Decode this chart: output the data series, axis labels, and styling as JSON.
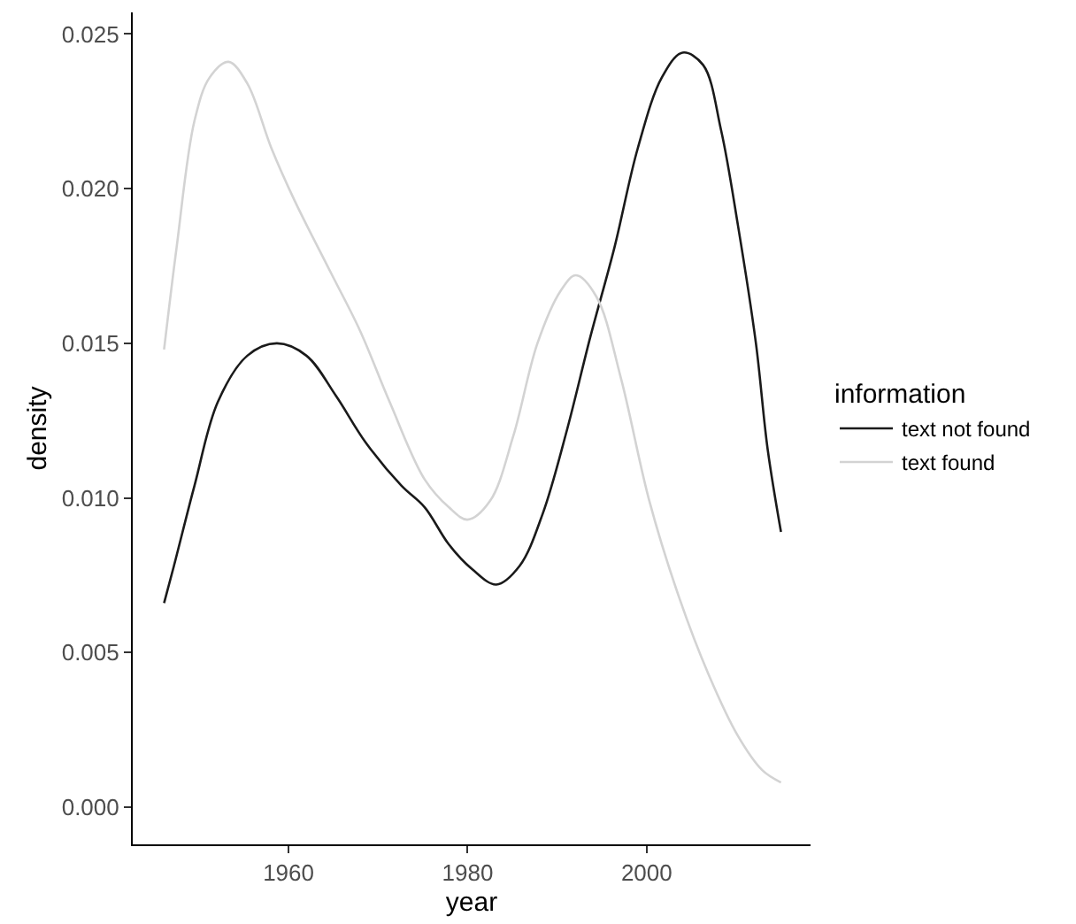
{
  "chart_data": {
    "type": "line",
    "xlabel": "year",
    "ylabel": "density",
    "legend_title": "information",
    "legend": "right",
    "marker": "none",
    "line_style": "solid",
    "xlim": [
      1942.6,
      2018.3
    ],
    "xticks": [
      1960,
      1980,
      2000
    ],
    "ylim": [
      -0.0012,
      0.0257
    ],
    "yticks": [
      {
        "value": 0,
        "label": "0.000"
      },
      {
        "value": 0.005,
        "label": "0.005"
      },
      {
        "value": 0.01,
        "label": "0.010"
      },
      {
        "value": 0.015,
        "label": "0.015"
      },
      {
        "value": 0.02,
        "label": "0.020"
      },
      {
        "value": 0.025,
        "label": "0.025"
      }
    ],
    "series": [
      {
        "name": "text not found",
        "color": "#1a1a1a",
        "x": [
          1946.1,
          1947.2,
          1949.5,
          1952.1,
          1955.4,
          1958.7,
          1962.0,
          1965.3,
          1968.6,
          1972.6,
          1975.2,
          1977.9,
          1980.5,
          1983.2,
          1985.8,
          1988.4,
          1991.1,
          1993.7,
          1996.4,
          1999.0,
          2001.7,
          2004.0,
          2006.3,
          2008.3,
          2010.2,
          2012.2,
          2013.5,
          2015.0
        ],
        "values": [
          0.0066,
          0.0078,
          0.0104,
          0.0131,
          0.0146,
          0.015,
          0.0146,
          0.0133,
          0.0118,
          0.0104,
          0.0097,
          0.0085,
          0.0077,
          0.0072,
          0.0078,
          0.0095,
          0.0122,
          0.0152,
          0.0181,
          0.0213,
          0.0236,
          0.0244,
          0.024,
          0.0219,
          0.0188,
          0.015,
          0.0116,
          0.0089
        ]
      },
      {
        "name": "text found",
        "color": "#d3d3d3",
        "x": [
          1946.1,
          1947.5,
          1949.5,
          1951.2,
          1953.3,
          1955.4,
          1958.1,
          1960.7,
          1964.7,
          1968.0,
          1971.3,
          1975.2,
          1977.9,
          1980.0,
          1982.5,
          1985.1,
          1987.8,
          1990.4,
          1992.1,
          1994.4,
          1997.1,
          2000.3,
          2003.6,
          2006.9,
          2010.2,
          2012.9,
          2015.0
        ],
        "values": [
          0.0148,
          0.0181,
          0.0222,
          0.0236,
          0.0241,
          0.0234,
          0.0213,
          0.0196,
          0.0173,
          0.0154,
          0.0131,
          0.0106,
          0.0097,
          0.0093,
          0.0099,
          0.012,
          0.015,
          0.0167,
          0.0172,
          0.0165,
          0.0139,
          0.0099,
          0.0068,
          0.0043,
          0.0023,
          0.0012,
          0.0008
        ]
      }
    ]
  }
}
